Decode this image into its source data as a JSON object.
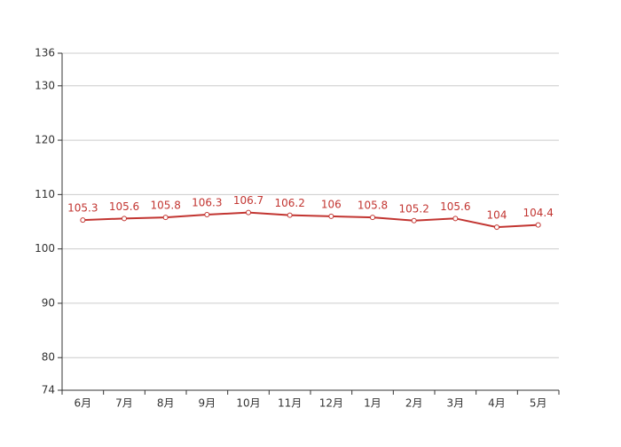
{
  "chart_data": {
    "type": "line",
    "categories": [
      "6月",
      "7月",
      "8月",
      "9月",
      "10月",
      "11月",
      "12月",
      "1月",
      "2月",
      "3月",
      "4月",
      "5月"
    ],
    "series": [
      {
        "color": "#c23531",
        "values": [
          105.3,
          105.6,
          105.8,
          106.3,
          106.7,
          106.2,
          106,
          105.8,
          105.2,
          105.6,
          104,
          104.4
        ]
      }
    ],
    "ylim": [
      74,
      136
    ],
    "yticks": [
      74,
      80,
      90,
      100,
      110,
      120,
      130,
      136
    ],
    "grid": true
  }
}
